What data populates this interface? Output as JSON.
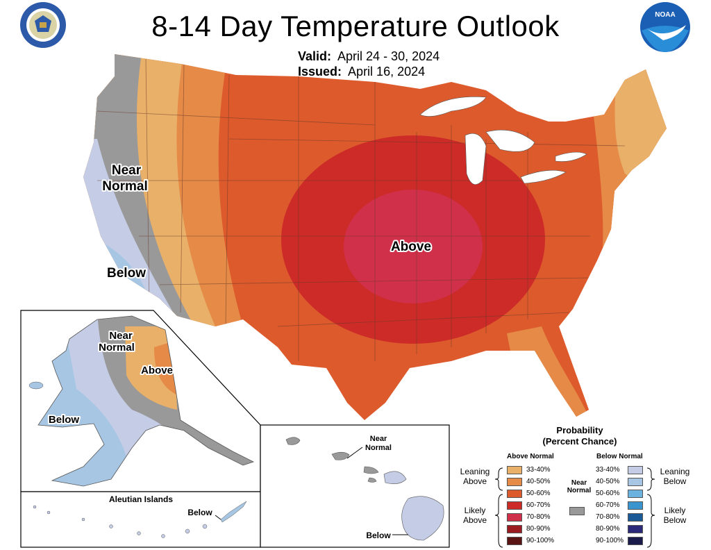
{
  "title": "8-14 Day Temperature Outlook",
  "valid": {
    "label": "Valid:",
    "value": "April 24 - 30, 2024"
  },
  "issued": {
    "label": "Issued:",
    "value": "April 16, 2024"
  },
  "logos": {
    "left": "dept-of-commerce-seal",
    "right": "noaa-logo"
  },
  "map_labels": {
    "conus_near_normal_1": "Near",
    "conus_near_normal_2": "Normal",
    "conus_below": "Below",
    "conus_above": "Above",
    "ak_near_1": "Near",
    "ak_near_2": "Normal",
    "ak_above": "Above",
    "ak_below": "Below",
    "aleutian_title": "Aleutian Islands",
    "aleutian_below": "Below",
    "hi_near_1": "Near",
    "hi_near_2": "Normal",
    "hi_below": "Below"
  },
  "legend": {
    "title_1": "Probability",
    "title_2": "(Percent Chance)",
    "above_header": "Above Normal",
    "below_header": "Below Normal",
    "near_label_1": "Near",
    "near_label_2": "Normal",
    "near_color": "#999999",
    "leaning_above": [
      "Leaning",
      "Above"
    ],
    "likely_above": [
      "Likely",
      "Above"
    ],
    "leaning_below": [
      "Leaning",
      "Below"
    ],
    "likely_below": [
      "Likely",
      "Below"
    ],
    "above": [
      {
        "range": "33-40%",
        "color": "#e9b06a"
      },
      {
        "range": "40-50%",
        "color": "#e58a47"
      },
      {
        "range": "50-60%",
        "color": "#dd5a2c"
      },
      {
        "range": "60-70%",
        "color": "#cc2b28"
      },
      {
        "range": "70-80%",
        "color": "#d0304a"
      },
      {
        "range": "80-90%",
        "color": "#9b1c20"
      },
      {
        "range": "90-100%",
        "color": "#5a1414"
      }
    ],
    "below": [
      {
        "range": "33-40%",
        "color": "#c5cce6"
      },
      {
        "range": "40-50%",
        "color": "#a6c6e3"
      },
      {
        "range": "50-60%",
        "color": "#6bb2df"
      },
      {
        "range": "60-70%",
        "color": "#3a95cf"
      },
      {
        "range": "70-80%",
        "color": "#1c5a97"
      },
      {
        "range": "80-90%",
        "color": "#2b2a7a"
      },
      {
        "range": "90-100%",
        "color": "#1b1b4b"
      }
    ]
  }
}
